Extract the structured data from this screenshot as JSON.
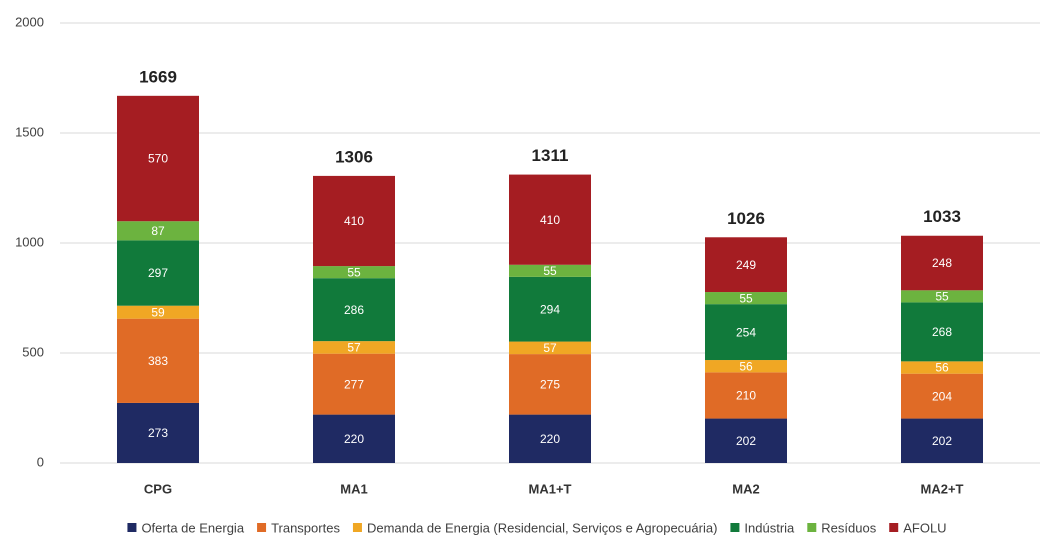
{
  "chart_data": {
    "type": "stacked-bar",
    "categories": [
      "CPG",
      "MA1",
      "MA1+T",
      "MA2",
      "MA2+T"
    ],
    "series": [
      {
        "name": "Oferta de Energia",
        "color": "#1f2a63",
        "values": [
          273,
          220,
          220,
          202,
          202
        ]
      },
      {
        "name": "Transportes",
        "color": "#e06b26",
        "values": [
          383,
          277,
          275,
          210,
          204
        ]
      },
      {
        "name": "Demanda de Energia (Residencial, Serviços e Agropecuária)",
        "color": "#f0a724",
        "values": [
          59,
          57,
          57,
          56,
          56
        ]
      },
      {
        "name": "Indústria",
        "color": "#117a3b",
        "values": [
          297,
          286,
          294,
          254,
          268
        ]
      },
      {
        "name": "Resíduos",
        "color": "#6cb33f",
        "values": [
          87,
          55,
          55,
          55,
          55
        ]
      },
      {
        "name": "AFOLU",
        "color": "#a51d22",
        "values": [
          570,
          410,
          410,
          249,
          248
        ]
      }
    ],
    "totals": [
      1669,
      1306,
      1311,
      1026,
      1033
    ],
    "ylim": [
      0,
      2000
    ],
    "yticks": [
      0,
      500,
      1000,
      1500,
      2000
    ],
    "grid": true,
    "legend": "bottom"
  }
}
